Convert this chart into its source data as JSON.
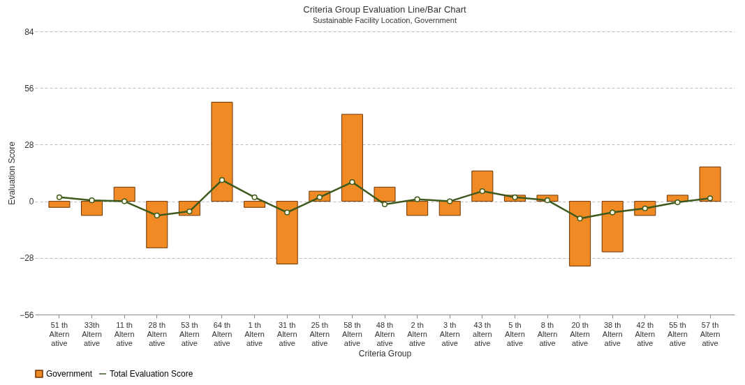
{
  "chart_data": {
    "type": "bar",
    "title": "Criteria Group Evaluation Line/Bar Chart",
    "subtitle": "Sustainable Facility Location, Government",
    "xlabel": "Criteria Group",
    "ylabel": "Evaluation Score",
    "categories": [
      "51 th\nAltern\native",
      "33th\nAltern\native",
      "11 th\nAltern\native",
      "28 th\nAltern\native",
      "53 th\nAltern\native",
      "64 th\nAltern\native",
      "1 th\nAltern\native",
      "31 th\nAltern\native",
      "25 th\nAltern\native",
      "58 th\nAltern\native",
      "48 th\nAltern\native",
      "2 th\nAltern\native",
      "3 th\nAltern\native",
      "43 th\naltern\native",
      "5 th\nAltern\native",
      "8 th\nAltern\native",
      "20 th\nAltern\native",
      "38 th\nAltern\native",
      "42 th\nAltern\native",
      "55 th\nAltern\native",
      "57 th\nAltern\native"
    ],
    "series": [
      {
        "name": "Government",
        "color": "#f08a24",
        "values": [
          -3,
          -7,
          7,
          -23,
          -7,
          49,
          -3,
          -31,
          5,
          43,
          7,
          -7,
          -7,
          15,
          3,
          3,
          -32,
          -25,
          -7,
          3,
          17
        ]
      },
      {
        "name": "Total Evaluation Score",
        "type": "line",
        "color": "#3d5a1e",
        "values": [
          2,
          0.5,
          0,
          -7,
          -5,
          10.5,
          2,
          -5.5,
          2,
          9.5,
          -1.5,
          1,
          0,
          5,
          2,
          0.5,
          -8.5,
          -5.5,
          -3.5,
          -0.5,
          1.5
        ]
      }
    ],
    "ylim": [
      -56,
      84
    ],
    "yticks": [
      -56,
      -28,
      0,
      28,
      56,
      84
    ],
    "grid": "y",
    "legend": "bottom",
    "marker": "circle",
    "line_style": "solid"
  }
}
